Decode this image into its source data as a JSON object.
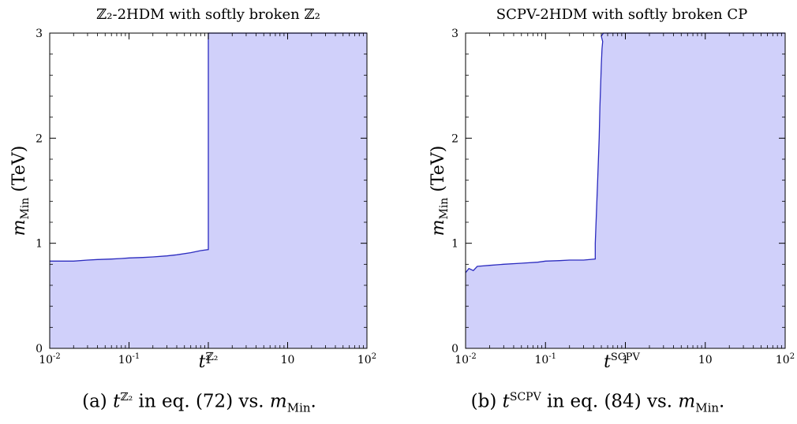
{
  "colors": {
    "fill": "#d0d0fa",
    "boundary": "#2b2bbf",
    "axis": "#000000"
  },
  "panels": [
    {
      "title": "ℤ₂-2HDM with softly broken ℤ₂",
      "xlabel": "t^ℤ₂",
      "xlabel_base": "t",
      "xlabel_sup": "ℤ₂",
      "ylabel": "m_Min (TeV)",
      "ylabel_base": "m",
      "ylabel_sub": "Min",
      "ylabel_unit": " (TeV)",
      "caption": {
        "tag": "(a)",
        "base": "t",
        "sup": "ℤ₂",
        "mid": " in eq. (72) vs. ",
        "m": "m",
        "msub": "Min",
        "end": "."
      }
    },
    {
      "title": "SCPV-2HDM with softly broken CP",
      "xlabel": "t^SCPV",
      "xlabel_base": "t",
      "xlabel_sup": "SCPV",
      "ylabel": "m_Min (TeV)",
      "ylabel_base": "m",
      "ylabel_sub": "Min",
      "ylabel_unit": " (TeV)",
      "caption": {
        "tag": "(b)",
        "base": "t",
        "sup": "SCPV",
        "mid": " in eq. (84) vs. ",
        "m": "m",
        "msub": "Min",
        "end": "."
      }
    }
  ],
  "chart_data": [
    {
      "type": "area",
      "title": "ℤ₂-2HDM with softly broken ℤ₂",
      "xlabel": "t^ℤ₂",
      "ylabel": "m_Min (TeV)",
      "xscale": "log",
      "xlim": [
        0.01,
        100
      ],
      "ylim": [
        0,
        3
      ],
      "xticks": [
        0.01,
        0.1,
        1,
        10,
        100
      ],
      "xtick_labels": [
        "10^-2",
        "10^-1",
        "1",
        "10",
        "10^2"
      ],
      "yticks": [
        0,
        1,
        2,
        3
      ],
      "ytick_labels": [
        "0",
        "1",
        "2",
        "3"
      ],
      "grid": false,
      "fill_description": "shaded region below boundary",
      "boundary": [
        [
          0.01,
          0.83
        ],
        [
          0.02,
          0.83
        ],
        [
          0.03,
          0.84
        ],
        [
          0.04,
          0.845
        ],
        [
          0.06,
          0.85
        ],
        [
          0.08,
          0.855
        ],
        [
          0.1,
          0.86
        ],
        [
          0.15,
          0.865
        ],
        [
          0.2,
          0.87
        ],
        [
          0.3,
          0.88
        ],
        [
          0.4,
          0.89
        ],
        [
          0.6,
          0.91
        ],
        [
          0.8,
          0.93
        ],
        [
          1.0,
          0.94
        ],
        [
          1.0,
          3.0
        ],
        [
          100,
          3.0
        ]
      ]
    },
    {
      "type": "area",
      "title": "SCPV-2HDM with softly broken CP",
      "xlabel": "t^SCPV",
      "ylabel": "m_Min (TeV)",
      "xscale": "log",
      "xlim": [
        0.01,
        100
      ],
      "ylim": [
        0,
        3
      ],
      "xticks": [
        0.01,
        0.1,
        1,
        10,
        100
      ],
      "xtick_labels": [
        "10^-2",
        "10^-1",
        "1",
        "10",
        "10^2"
      ],
      "yticks": [
        0,
        1,
        2,
        3
      ],
      "ytick_labels": [
        "0",
        "1",
        "2",
        "3"
      ],
      "grid": false,
      "fill_description": "shaded region below boundary",
      "boundary": [
        [
          0.01,
          0.72
        ],
        [
          0.011,
          0.76
        ],
        [
          0.0125,
          0.74
        ],
        [
          0.014,
          0.78
        ],
        [
          0.02,
          0.79
        ],
        [
          0.03,
          0.8
        ],
        [
          0.05,
          0.81
        ],
        [
          0.08,
          0.82
        ],
        [
          0.1,
          0.83
        ],
        [
          0.15,
          0.835
        ],
        [
          0.2,
          0.84
        ],
        [
          0.3,
          0.84
        ],
        [
          0.42,
          0.85
        ],
        [
          0.42,
          1.0
        ],
        [
          0.45,
          1.6
        ],
        [
          0.47,
          2.0
        ],
        [
          0.48,
          2.3
        ],
        [
          0.49,
          2.5
        ],
        [
          0.5,
          2.7
        ],
        [
          0.51,
          2.85
        ],
        [
          0.52,
          2.92
        ],
        [
          0.5,
          2.97
        ],
        [
          0.53,
          3.0
        ],
        [
          100,
          3.0
        ]
      ]
    }
  ]
}
